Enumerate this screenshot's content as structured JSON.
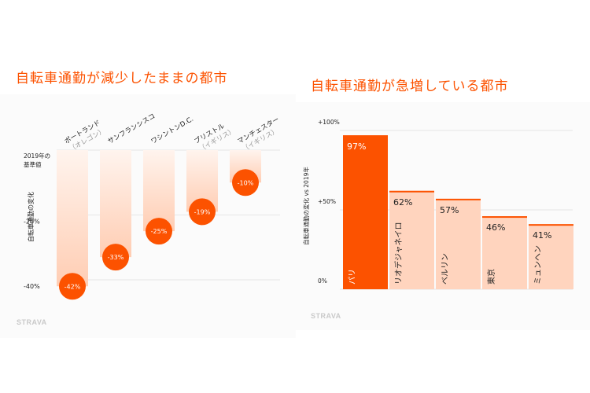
{
  "chart_data": [
    {
      "type": "bar",
      "title": "自転車通勤が減少したままの都市",
      "ylabel": "自転車通勤の変化",
      "baseline_label": [
        "2019年の",
        "基準値"
      ],
      "ytick_labels": [
        "-20%",
        "-40%"
      ],
      "ylim": [
        -45,
        0
      ],
      "categories": [
        {
          "name": "ポートランド",
          "sub": "（オレゴン）"
        },
        {
          "name": "サンフランシスコ",
          "sub": ""
        },
        {
          "name": "ワシントンD.C.",
          "sub": ""
        },
        {
          "name": "ブリストル",
          "sub": "（イギリス）"
        },
        {
          "name": "マンチェスター",
          "sub": "（イギリス）"
        }
      ],
      "values": [
        -42,
        -33,
        -25,
        -19,
        -10
      ],
      "value_labels": [
        "-42%",
        "-33%",
        "-25%",
        "-19%",
        "-10%"
      ]
    },
    {
      "type": "bar",
      "title": "自転車通勤が急増している都市",
      "ylabel": "自転車通勤の変化 vs 2019年",
      "ytick_labels": [
        "+100%",
        "+50%",
        "0%"
      ],
      "ylim": [
        0,
        100
      ],
      "categories": [
        "パリ",
        "リオデジャネイロ",
        "ベルリン",
        "東京",
        "ミュンヘン"
      ],
      "values": [
        97,
        62,
        57,
        46,
        41
      ],
      "value_labels": [
        "97%",
        "62%",
        "57%",
        "46%",
        "41%"
      ]
    }
  ],
  "logo_text": "STRAVA",
  "colors": {
    "accent": "#fc5200",
    "bar_light": "#ffd4be",
    "bar_gradient_top": "#fff0e8",
    "bar_gradient_bottom": "#ffcfb6",
    "grid": "#e6e6e6",
    "text": "#222222",
    "muted": "#999999"
  }
}
